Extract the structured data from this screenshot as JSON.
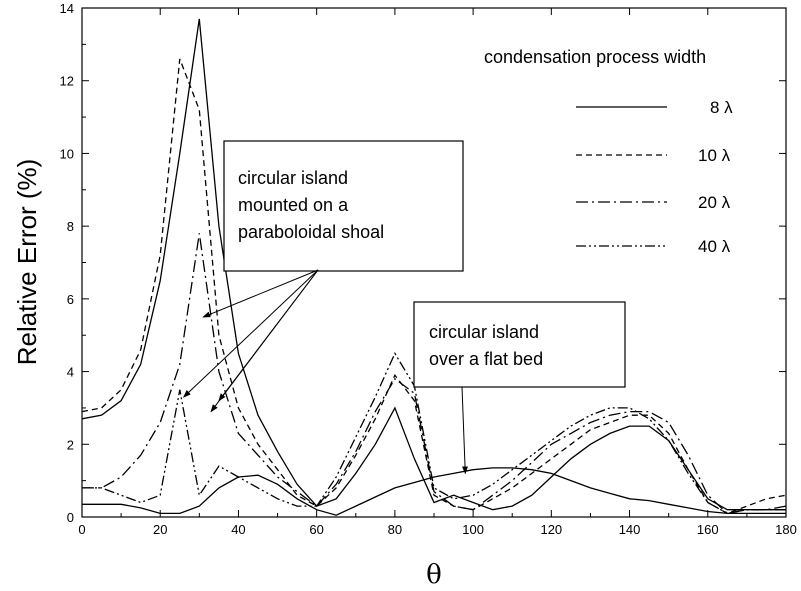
{
  "chart_data": {
    "type": "line",
    "title": "",
    "xlabel": "θ",
    "ylabel": "Relative  Error (%)",
    "xlim": [
      0,
      180
    ],
    "ylim": [
      0,
      14
    ],
    "x_ticks": [
      "0",
      "20",
      "40",
      "60",
      "80",
      "100",
      "120",
      "140",
      "160",
      "180"
    ],
    "y_ticks": [
      "0",
      "2",
      "4",
      "6",
      "8",
      "10",
      "12",
      "14"
    ],
    "grid": false,
    "legend": {
      "title": "condensation process width",
      "placement": "top-right"
    },
    "series": [
      {
        "name": "8 λ",
        "group": "circular island mounted on a paraboloidal shoal",
        "style": "solid",
        "x": [
          0,
          5,
          10,
          15,
          20,
          25,
          30,
          35,
          40,
          45,
          50,
          55,
          60,
          65,
          70,
          75,
          80,
          85,
          90,
          95,
          100,
          105,
          110,
          115,
          120,
          125,
          130,
          135,
          140,
          145,
          150,
          155,
          160,
          165,
          170,
          175,
          180
        ],
        "y": [
          2.7,
          2.8,
          3.2,
          4.2,
          6.5,
          10.0,
          13.7,
          8.0,
          4.5,
          2.8,
          1.8,
          0.9,
          0.3,
          0.5,
          1.2,
          2.0,
          3.0,
          1.6,
          0.4,
          0.6,
          0.4,
          0.2,
          0.3,
          0.6,
          1.1,
          1.6,
          2.0,
          2.3,
          2.5,
          2.5,
          2.1,
          1.3,
          0.5,
          0.2,
          0.2,
          0.2,
          0.2
        ]
      },
      {
        "name": "10 λ",
        "group": "circular island mounted on a paraboloidal shoal",
        "style": "dashed",
        "x": [
          0,
          5,
          10,
          15,
          20,
          25,
          30,
          35,
          40,
          45,
          50,
          55,
          60,
          65,
          70,
          75,
          80,
          85,
          90,
          95,
          100,
          105,
          110,
          115,
          120,
          125,
          130,
          135,
          140,
          145,
          150,
          155,
          160,
          165,
          170,
          175,
          180
        ],
        "y": [
          2.9,
          3.0,
          3.5,
          4.6,
          7.2,
          12.6,
          11.2,
          5.0,
          3.0,
          2.0,
          1.3,
          0.6,
          0.3,
          0.8,
          1.7,
          2.7,
          3.9,
          3.2,
          0.6,
          0.3,
          0.2,
          0.5,
          0.8,
          1.2,
          1.6,
          2.0,
          2.4,
          2.6,
          2.8,
          2.8,
          2.3,
          1.3,
          0.4,
          0.1,
          0.3,
          0.5,
          0.6
        ]
      },
      {
        "name": "20 λ",
        "group": "circular island mounted on a paraboloidal shoal",
        "style": "dash-dot",
        "x": [
          0,
          5,
          10,
          15,
          20,
          25,
          30,
          35,
          40,
          45,
          50,
          55,
          60,
          65,
          70,
          75,
          80,
          85,
          90,
          95,
          100,
          105,
          110,
          115,
          120,
          125,
          130,
          135,
          140,
          145,
          150,
          155,
          160,
          165,
          170,
          175,
          180
        ],
        "y": [
          0.8,
          0.8,
          1.1,
          1.7,
          2.6,
          4.2,
          7.8,
          4.0,
          2.3,
          1.7,
          1.1,
          0.7,
          0.3,
          0.9,
          1.8,
          2.9,
          3.8,
          3.4,
          0.7,
          0.3,
          0.2,
          0.6,
          1.0,
          1.5,
          2.0,
          2.3,
          2.6,
          2.8,
          2.9,
          2.9,
          2.6,
          1.7,
          0.6,
          0.1,
          0.2,
          0.2,
          0.3
        ]
      },
      {
        "name": "40 λ",
        "group": "circular island mounted on a paraboloidal shoal",
        "style": "dash-dot-dot",
        "x": [
          0,
          5,
          10,
          15,
          20,
          25,
          30,
          35,
          40,
          45,
          50,
          55,
          60,
          65,
          70,
          75,
          80,
          85,
          90,
          95,
          100,
          105,
          110,
          115,
          120,
          125,
          130,
          135,
          140,
          145,
          150,
          155,
          160,
          165,
          170,
          175,
          180
        ],
        "y": [
          0.8,
          0.8,
          0.6,
          0.4,
          0.6,
          3.5,
          0.6,
          1.4,
          1.1,
          0.8,
          0.5,
          0.3,
          0.3,
          1.1,
          2.2,
          3.3,
          4.5,
          3.6,
          0.8,
          0.5,
          0.6,
          0.9,
          1.3,
          1.7,
          2.1,
          2.5,
          2.8,
          3.0,
          3.0,
          2.7,
          2.1,
          1.2,
          0.4,
          0.1,
          0.2,
          0.2,
          0.2
        ]
      },
      {
        "name": "",
        "group": "circular island over a flat bed",
        "style": "solid",
        "x": [
          0,
          5,
          10,
          15,
          20,
          25,
          30,
          35,
          40,
          45,
          50,
          55,
          60,
          65,
          70,
          75,
          80,
          85,
          90,
          95,
          100,
          105,
          110,
          115,
          120,
          125,
          130,
          135,
          140,
          145,
          150,
          155,
          160,
          165,
          170,
          175,
          180
        ],
        "y": [
          0.35,
          0.35,
          0.35,
          0.25,
          0.1,
          0.1,
          0.3,
          0.8,
          1.1,
          1.15,
          0.9,
          0.5,
          0.2,
          0.05,
          0.3,
          0.55,
          0.8,
          0.95,
          1.1,
          1.2,
          1.3,
          1.35,
          1.35,
          1.3,
          1.2,
          1.0,
          0.8,
          0.65,
          0.5,
          0.45,
          0.35,
          0.25,
          0.15,
          0.1,
          0.1,
          0.1,
          0.1
        ]
      }
    ],
    "legend_entries": [
      {
        "label": "8 λ",
        "style": "solid"
      },
      {
        "label": "10  λ",
        "style": "dashed"
      },
      {
        "label": "20  λ",
        "style": "dash-dot"
      },
      {
        "label": "40  λ",
        "style": "dash-dot-dot"
      }
    ],
    "annotations": [
      {
        "id": "shoal",
        "lines": [
          "circular island",
          "mounted on a",
          "paraboloidal shoal"
        ],
        "arrow_targets": [
          [
            31,
            5.5
          ],
          [
            26,
            3.3
          ],
          [
            33,
            2.9
          ],
          [
            35,
            3.2
          ]
        ]
      },
      {
        "id": "flat",
        "lines": [
          "circular island",
          "over a flat bed"
        ],
        "arrow_targets": [
          [
            98,
            1.2
          ]
        ]
      }
    ],
    "colors": {
      "line": "#000000",
      "background": "#ffffff"
    }
  }
}
